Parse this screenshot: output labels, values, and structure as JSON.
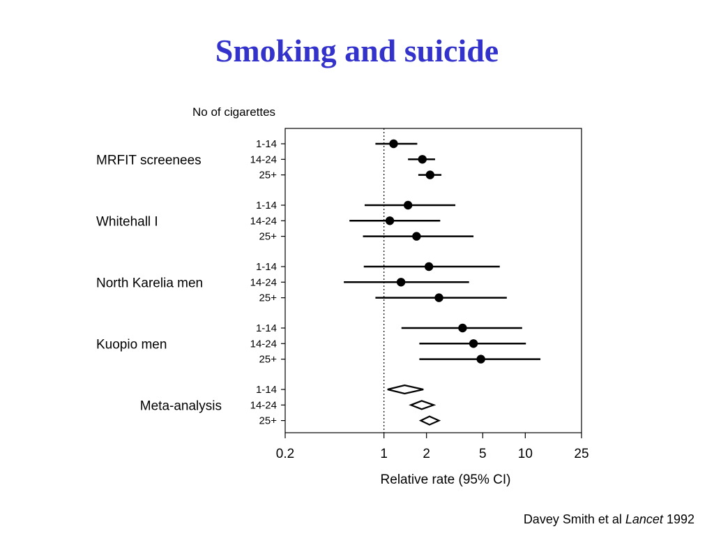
{
  "slide": {
    "title": "Smoking and suicide",
    "citation_authors": "Davey Smith et al",
    "citation_journal": "Lancet",
    "citation_year": "1992"
  },
  "colors": {
    "title": "#3333cc",
    "marks": "#000000"
  },
  "chart_data": {
    "type": "forest",
    "title": "",
    "category_header": "No of cigarettes",
    "xlabel": "Relative rate (95% CI)",
    "x_scale": "log",
    "xlim": [
      0.2,
      25
    ],
    "x_ticks": [
      0.2,
      1,
      2,
      5,
      10,
      25
    ],
    "x_tick_labels": [
      "0.2",
      "1",
      "2",
      "5",
      "10",
      "25"
    ],
    "reference_line": 1,
    "grid": false,
    "groups": [
      {
        "name": "MRFIT screenees",
        "rows": [
          {
            "label": "1-14",
            "estimate": 1.17,
            "lower": 0.87,
            "upper": 1.72
          },
          {
            "label": "14-24",
            "estimate": 1.87,
            "lower": 1.48,
            "upper": 2.3
          },
          {
            "label": "25+",
            "estimate": 2.12,
            "lower": 1.75,
            "upper": 2.55
          }
        ]
      },
      {
        "name": "Whitehall I",
        "rows": [
          {
            "label": "1-14",
            "estimate": 1.48,
            "lower": 0.73,
            "upper": 3.2
          },
          {
            "label": "14-24",
            "estimate": 1.1,
            "lower": 0.57,
            "upper": 2.5
          },
          {
            "label": "25+",
            "estimate": 1.7,
            "lower": 0.71,
            "upper": 4.3
          }
        ]
      },
      {
        "name": "North Karelia men",
        "rows": [
          {
            "label": "1-14",
            "estimate": 2.08,
            "lower": 0.72,
            "upper": 6.6
          },
          {
            "label": "14-24",
            "estimate": 1.32,
            "lower": 0.52,
            "upper": 4.0
          },
          {
            "label": "25+",
            "estimate": 2.45,
            "lower": 0.87,
            "upper": 7.4
          }
        ]
      },
      {
        "name": "Kuopio men",
        "rows": [
          {
            "label": "1-14",
            "estimate": 3.6,
            "lower": 1.33,
            "upper": 9.5
          },
          {
            "label": "14-24",
            "estimate": 4.3,
            "lower": 1.78,
            "upper": 10.1
          },
          {
            "label": "25+",
            "estimate": 4.85,
            "lower": 1.78,
            "upper": 12.8
          }
        ]
      },
      {
        "name": "Meta-analysis",
        "pooled": true,
        "rows": [
          {
            "label": "1-14",
            "estimate": 1.4,
            "lower": 1.06,
            "upper": 1.9
          },
          {
            "label": "14-24",
            "estimate": 1.85,
            "lower": 1.55,
            "upper": 2.25
          },
          {
            "label": "25+",
            "estimate": 2.1,
            "lower": 1.82,
            "upper": 2.45
          }
        ]
      }
    ]
  }
}
